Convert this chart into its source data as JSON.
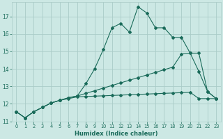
{
  "xlabel": "Humidex (Indice chaleur)",
  "bg_color": "#cce8e4",
  "grid_color": "#aaccc8",
  "line_color": "#1a6b5a",
  "xlim": [
    -0.5,
    23.5
  ],
  "ylim": [
    11,
    17.8
  ],
  "yticks": [
    11,
    12,
    13,
    14,
    15,
    16,
    17
  ],
  "xticks": [
    0,
    1,
    2,
    3,
    4,
    5,
    6,
    7,
    8,
    9,
    10,
    11,
    12,
    13,
    14,
    15,
    16,
    17,
    18,
    19,
    20,
    21,
    22,
    23
  ],
  "line1_x": [
    0,
    1,
    2,
    3,
    4,
    5,
    6,
    7,
    8,
    9,
    10,
    11,
    12,
    13,
    14,
    15,
    16,
    17,
    18,
    19,
    20,
    21,
    22,
    23
  ],
  "line1_y": [
    11.55,
    11.2,
    11.55,
    11.8,
    12.05,
    12.2,
    12.35,
    12.45,
    13.15,
    14.0,
    15.1,
    16.35,
    16.6,
    16.1,
    17.55,
    17.2,
    16.35,
    16.35,
    15.8,
    15.8,
    14.9,
    13.85,
    12.7,
    12.3
  ],
  "line2_x": [
    0,
    1,
    2,
    3,
    4,
    5,
    6,
    7,
    8,
    9,
    10,
    11,
    12,
    13,
    14,
    15,
    16,
    17,
    18,
    19,
    20,
    21,
    22,
    23
  ],
  "line2_y": [
    11.55,
    11.2,
    11.55,
    11.8,
    12.05,
    12.2,
    12.35,
    12.45,
    12.6,
    12.75,
    12.9,
    13.05,
    13.2,
    13.35,
    13.5,
    13.65,
    13.8,
    13.95,
    14.1,
    14.85,
    14.9,
    14.9,
    12.7,
    12.3
  ],
  "line3_x": [
    0,
    1,
    2,
    3,
    4,
    5,
    6,
    7,
    8,
    9,
    10,
    11,
    12,
    13,
    14,
    15,
    16,
    17,
    18,
    19,
    20,
    21,
    22,
    23
  ],
  "line3_y": [
    11.55,
    11.2,
    11.55,
    11.8,
    12.05,
    12.2,
    12.3,
    12.4,
    12.42,
    12.44,
    12.46,
    12.48,
    12.5,
    12.52,
    12.54,
    12.56,
    12.58,
    12.6,
    12.62,
    12.64,
    12.66,
    12.3,
    12.3,
    12.3
  ]
}
